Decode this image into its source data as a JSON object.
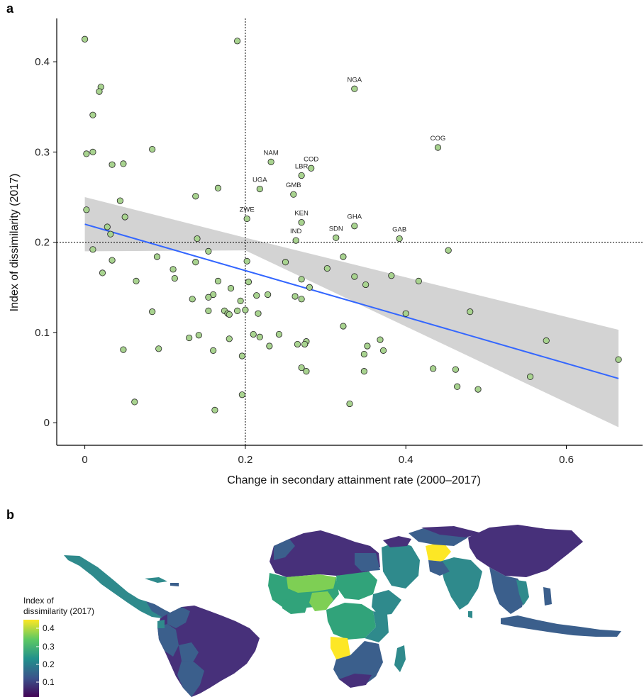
{
  "panel_labels": {
    "a": "a",
    "b": "b"
  },
  "chart_data": [
    {
      "type": "scatter",
      "panel": "a",
      "xlabel": "Change in secondary attainment rate (2000–2017)",
      "ylabel": "Index of dissimilarity (2017)",
      "xlim": [
        -0.035,
        0.695
      ],
      "ylim": [
        -0.025,
        0.448
      ],
      "xticks": [
        0,
        0.2,
        0.4,
        0.6
      ],
      "xtick_labels": [
        "0",
        "0.2",
        "0.4",
        "0.6"
      ],
      "yticks": [
        0,
        0.1,
        0.2,
        0.3,
        0.4
      ],
      "ytick_labels": [
        "0",
        "0.1",
        "0.2",
        "0.3",
        "0.4"
      ],
      "reference_lines": {
        "x": 0.2,
        "y": 0.2
      },
      "grid": false,
      "point_color": "#a8d38f",
      "point_edge_color": "#222222",
      "fit_color": "#3366ff",
      "band_color": "#d3d3d3",
      "fit_line": {
        "x": [
          0,
          0.665
        ],
        "y": [
          0.22,
          0.049
        ]
      },
      "confidence_band": {
        "x": [
          0,
          0.2,
          0.665
        ],
        "lower": [
          0.19,
          0.191,
          -0.005
        ],
        "upper": [
          0.25,
          0.205,
          0.103
        ]
      },
      "labeled_points": [
        {
          "label": "NGA",
          "x": 0.336,
          "y": 0.37
        },
        {
          "label": "COG",
          "x": 0.44,
          "y": 0.305
        },
        {
          "label": "NAM",
          "x": 0.232,
          "y": 0.289
        },
        {
          "label": "COD",
          "x": 0.282,
          "y": 0.282
        },
        {
          "label": "LBR",
          "x": 0.27,
          "y": 0.274
        },
        {
          "label": "UGA",
          "x": 0.218,
          "y": 0.259
        },
        {
          "label": "GMB",
          "x": 0.26,
          "y": 0.253
        },
        {
          "label": "ZWE",
          "x": 0.202,
          "y": 0.226
        },
        {
          "label": "KEN",
          "x": 0.27,
          "y": 0.222
        },
        {
          "label": "GHA",
          "x": 0.336,
          "y": 0.218
        },
        {
          "label": "IND",
          "x": 0.263,
          "y": 0.202
        },
        {
          "label": "SDN",
          "x": 0.313,
          "y": 0.205
        },
        {
          "label": "GAB",
          "x": 0.392,
          "y": 0.204
        }
      ],
      "points": [
        [
          0.0,
          0.425
        ],
        [
          0.19,
          0.423
        ],
        [
          0.02,
          0.372
        ],
        [
          0.018,
          0.367
        ],
        [
          0.01,
          0.341
        ],
        [
          0.002,
          0.298
        ],
        [
          0.01,
          0.3
        ],
        [
          0.034,
          0.286
        ],
        [
          0.048,
          0.287
        ],
        [
          0.084,
          0.303
        ],
        [
          0.166,
          0.26
        ],
        [
          0.138,
          0.251
        ],
        [
          0.044,
          0.246
        ],
        [
          0.002,
          0.236
        ],
        [
          0.05,
          0.228
        ],
        [
          0.028,
          0.217
        ],
        [
          0.032,
          0.209
        ],
        [
          0.14,
          0.204
        ],
        [
          0.01,
          0.192
        ],
        [
          0.154,
          0.19
        ],
        [
          0.09,
          0.184
        ],
        [
          0.034,
          0.18
        ],
        [
          0.138,
          0.178
        ],
        [
          0.202,
          0.179
        ],
        [
          0.25,
          0.178
        ],
        [
          0.322,
          0.184
        ],
        [
          0.453,
          0.191
        ],
        [
          0.302,
          0.171
        ],
        [
          0.11,
          0.17
        ],
        [
          0.022,
          0.166
        ],
        [
          0.112,
          0.16
        ],
        [
          0.336,
          0.162
        ],
        [
          0.382,
          0.163
        ],
        [
          0.064,
          0.157
        ],
        [
          0.166,
          0.157
        ],
        [
          0.204,
          0.156
        ],
        [
          0.27,
          0.159
        ],
        [
          0.35,
          0.153
        ],
        [
          0.416,
          0.157
        ],
        [
          0.182,
          0.149
        ],
        [
          0.28,
          0.15
        ],
        [
          0.16,
          0.142
        ],
        [
          0.154,
          0.139
        ],
        [
          0.214,
          0.141
        ],
        [
          0.228,
          0.142
        ],
        [
          0.262,
          0.14
        ],
        [
          0.27,
          0.137
        ],
        [
          0.134,
          0.137
        ],
        [
          0.194,
          0.135
        ],
        [
          0.084,
          0.123
        ],
        [
          0.154,
          0.124
        ],
        [
          0.174,
          0.124
        ],
        [
          0.178,
          0.121
        ],
        [
          0.18,
          0.12
        ],
        [
          0.19,
          0.124
        ],
        [
          0.2,
          0.125
        ],
        [
          0.216,
          0.121
        ],
        [
          0.4,
          0.121
        ],
        [
          0.48,
          0.123
        ],
        [
          0.322,
          0.107
        ],
        [
          0.21,
          0.098
        ],
        [
          0.242,
          0.098
        ],
        [
          0.218,
          0.095
        ],
        [
          0.13,
          0.094
        ],
        [
          0.142,
          0.097
        ],
        [
          0.18,
          0.093
        ],
        [
          0.265,
          0.087
        ],
        [
          0.276,
          0.09
        ],
        [
          0.274,
          0.087
        ],
        [
          0.368,
          0.092
        ],
        [
          0.575,
          0.091
        ],
        [
          0.23,
          0.085
        ],
        [
          0.352,
          0.085
        ],
        [
          0.048,
          0.081
        ],
        [
          0.092,
          0.082
        ],
        [
          0.16,
          0.08
        ],
        [
          0.372,
          0.08
        ],
        [
          0.348,
          0.076
        ],
        [
          0.196,
          0.074
        ],
        [
          0.665,
          0.07
        ],
        [
          0.27,
          0.061
        ],
        [
          0.276,
          0.057
        ],
        [
          0.348,
          0.057
        ],
        [
          0.434,
          0.06
        ],
        [
          0.462,
          0.059
        ],
        [
          0.555,
          0.051
        ],
        [
          0.464,
          0.04
        ],
        [
          0.49,
          0.037
        ],
        [
          0.196,
          0.031
        ],
        [
          0.062,
          0.023
        ],
        [
          0.33,
          0.021
        ],
        [
          0.162,
          0.014
        ]
      ]
    },
    {
      "type": "heatmap",
      "panel": "b",
      "description_free": true,
      "legend_title": [
        "Index of",
        "dissimilarity (2017)"
      ],
      "legend_ticks": [
        "0.4",
        "0.3",
        "0.2",
        "0.1"
      ],
      "colors": {
        "dark": "#47307a",
        "mid_dark": "#3b5f8c",
        "mid": "#2f8a8c",
        "mid_light": "#31a37a",
        "light": "#7ecf54",
        "yellow": "#fde725",
        "ocean_bg": "#ffffff"
      }
    }
  ]
}
